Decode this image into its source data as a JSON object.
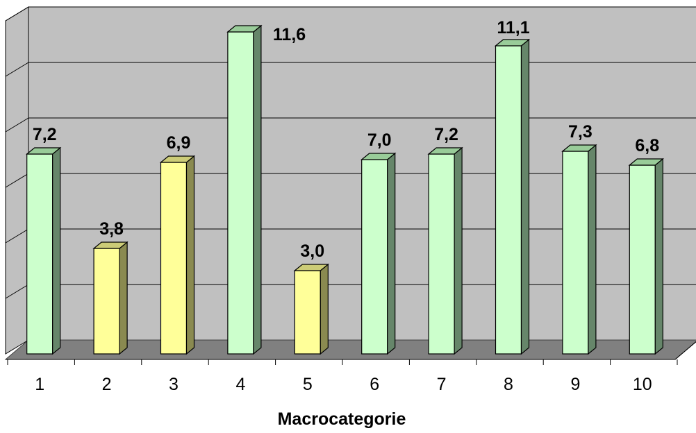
{
  "chart_data": {
    "type": "bar",
    "categories": [
      "1",
      "2",
      "3",
      "4",
      "5",
      "6",
      "7",
      "8",
      "9",
      "10"
    ],
    "values": [
      7.2,
      3.8,
      6.9,
      11.6,
      3.0,
      7.0,
      7.2,
      11.1,
      7.3,
      6.8
    ],
    "value_labels": [
      "7,2",
      "3,8",
      "6,9",
      "11,6",
      "3,0",
      "7,0",
      "7,2",
      "11,1",
      "7,3",
      "6,8"
    ],
    "title": "",
    "xlabel": "Macrocategorie",
    "ylabel": "",
    "ylim": [
      0,
      12
    ],
    "grid": true,
    "legend": "none",
    "colors": {
      "light_green": "#ccffcc",
      "light_green_side": "#66866a",
      "light_yellow": "#ffff99",
      "light_yellow_side": "#8a8a50",
      "wall": "#c0c0c0",
      "floor": "#808080"
    },
    "bar_colors": [
      "green",
      "yellow",
      "yellow",
      "green",
      "yellow",
      "green",
      "green",
      "green",
      "green",
      "green"
    ]
  }
}
